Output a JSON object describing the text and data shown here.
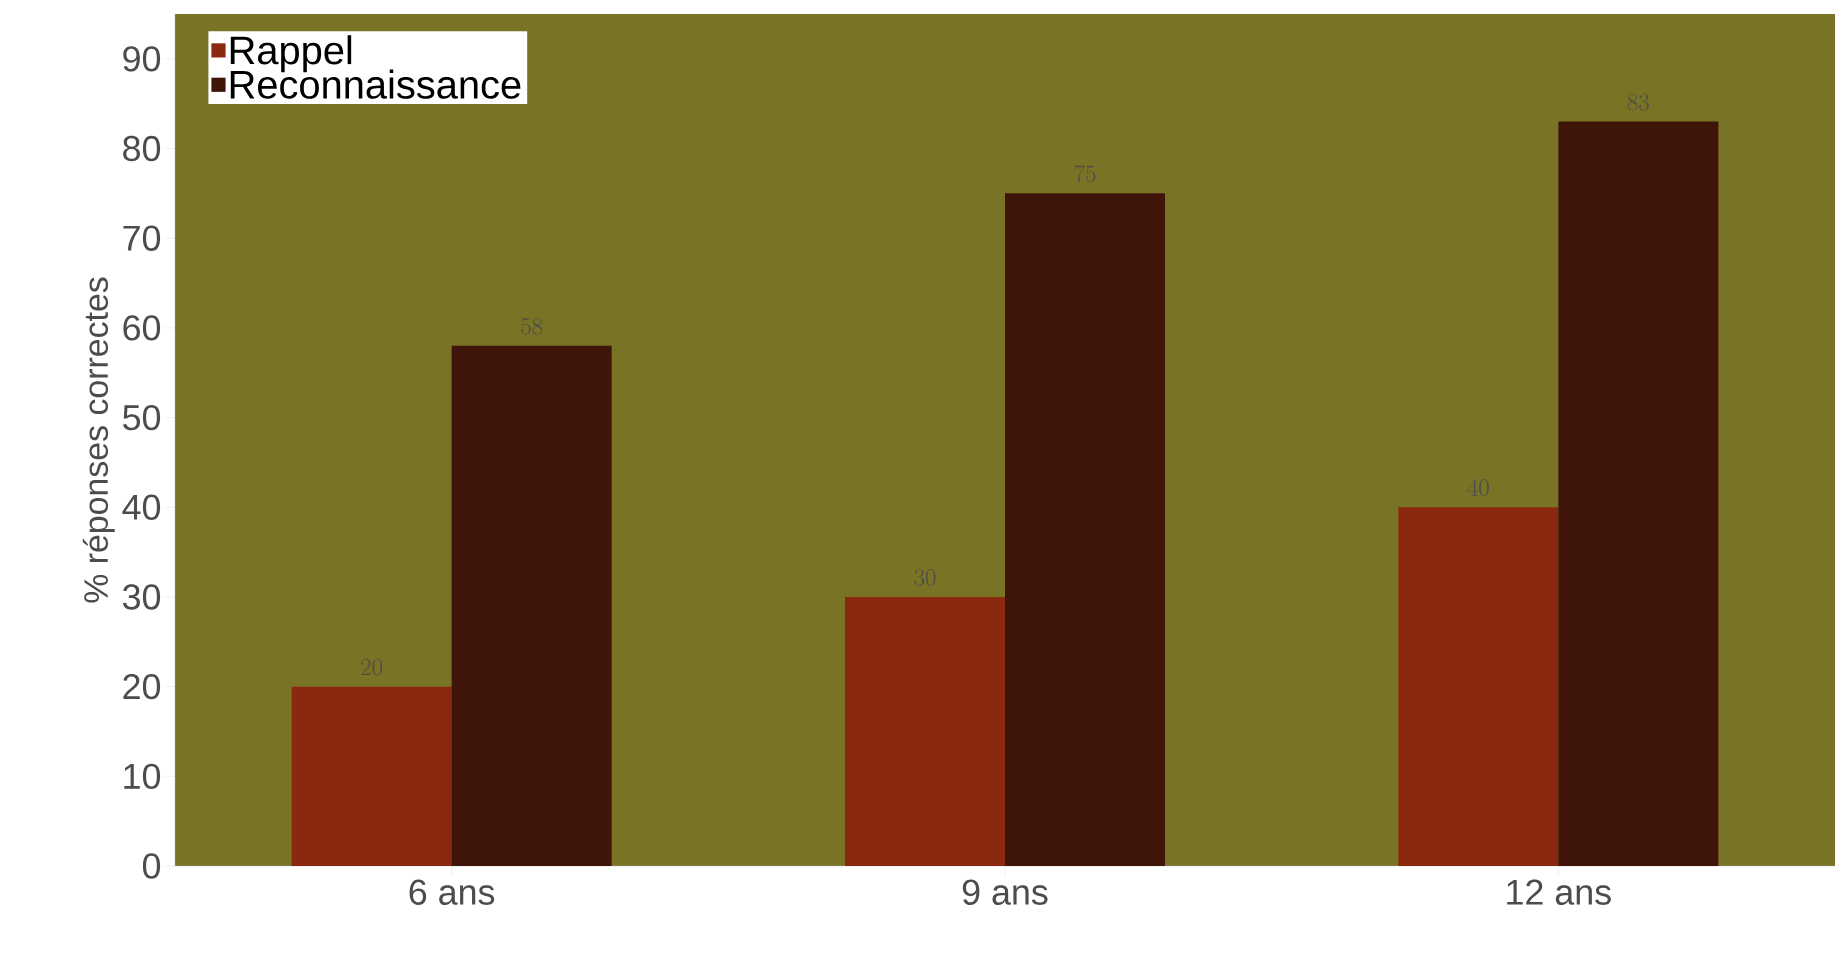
{
  "chart_data": {
    "type": "bar",
    "ylabel": "% réponses correctes",
    "categories": [
      "6 ans",
      "9 ans",
      "12 ans"
    ],
    "series": [
      {
        "name": "Rappel",
        "color": "#8a2810",
        "values": [
          20,
          30,
          40
        ]
      },
      {
        "name": "Reconnaissance",
        "color": "#3f1409",
        "values": [
          58,
          75,
          83
        ]
      }
    ],
    "ylim": [
      0,
      95
    ],
    "yticks": [
      0,
      10,
      20,
      30,
      40,
      50,
      60,
      70,
      80,
      90
    ],
    "data_labels": true,
    "legend": "top left"
  }
}
